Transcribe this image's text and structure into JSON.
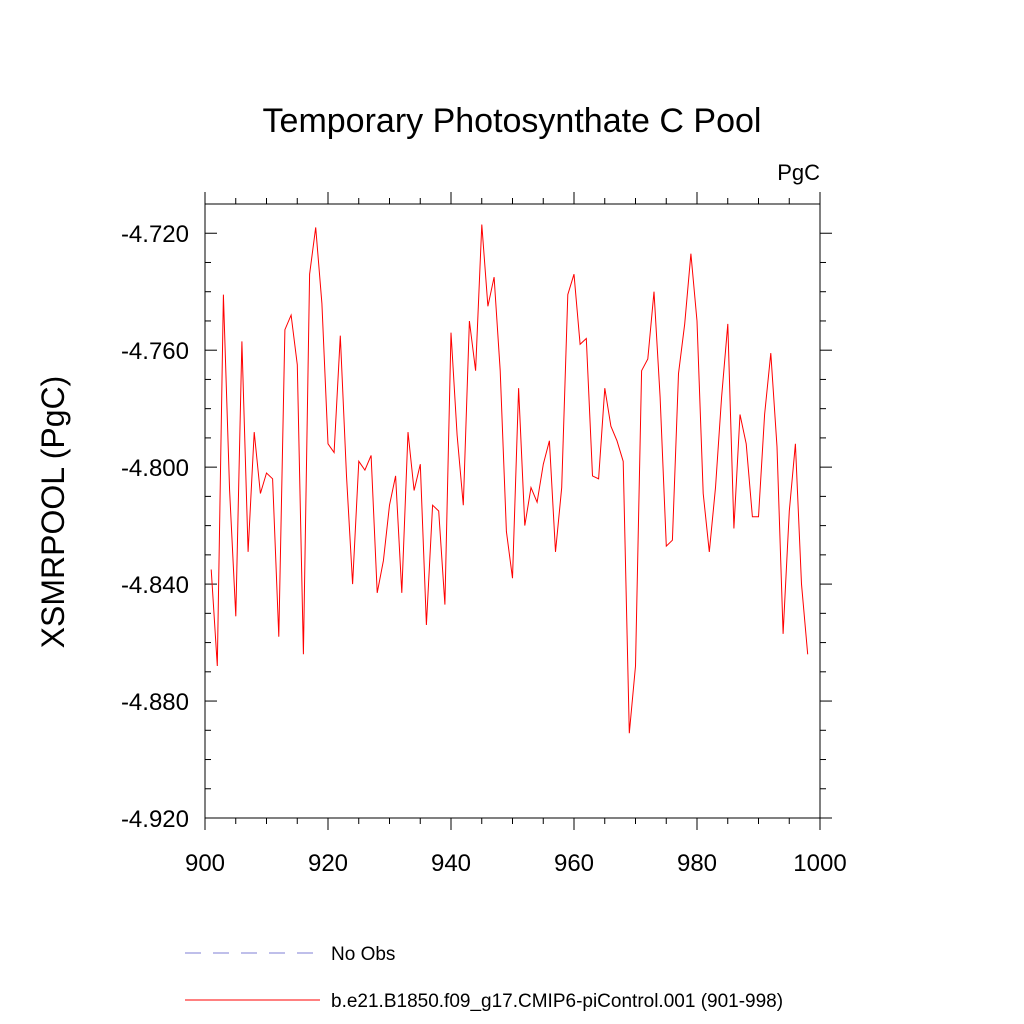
{
  "chart_data": {
    "type": "line",
    "title": "Temporary Photosynthate C Pool",
    "units": "PgC",
    "ylabel": "XSMRPOOL  (PgC)",
    "xlabel": "",
    "xlim": [
      900,
      1000
    ],
    "ylim": [
      -4.92,
      -4.71
    ],
    "x_ticks": [
      900,
      920,
      940,
      960,
      980,
      1000
    ],
    "x_tick_labels": [
      "900",
      "920",
      "940",
      "960",
      "980",
      "1000"
    ],
    "y_ticks": [
      -4.72,
      -4.76,
      -4.8,
      -4.84,
      -4.88,
      -4.92
    ],
    "y_tick_labels": [
      "-4.720",
      "-4.760",
      "-4.800",
      "-4.840",
      "-4.880",
      "-4.920"
    ],
    "grid": false,
    "series": [
      {
        "name": "b.e21.B1850.f09_g17.CMIP6-piControl.001 (901-998)",
        "color": "#ff0000",
        "x": [
          901,
          902,
          903,
          904,
          905,
          906,
          907,
          908,
          909,
          910,
          911,
          912,
          913,
          914,
          915,
          916,
          917,
          918,
          919,
          920,
          921,
          922,
          923,
          924,
          925,
          926,
          927,
          928,
          929,
          930,
          931,
          932,
          933,
          934,
          935,
          936,
          937,
          938,
          939,
          940,
          941,
          942,
          943,
          944,
          945,
          946,
          947,
          948,
          949,
          950,
          951,
          952,
          953,
          954,
          955,
          956,
          957,
          958,
          959,
          960,
          961,
          962,
          963,
          964,
          965,
          966,
          967,
          968,
          969,
          970,
          971,
          972,
          973,
          974,
          975,
          976,
          977,
          978,
          979,
          980,
          981,
          982,
          983,
          984,
          985,
          986,
          987,
          988,
          989,
          990,
          991,
          992,
          993,
          994,
          995,
          996,
          997,
          998
        ],
        "y": [
          -4.835,
          -4.868,
          -4.741,
          -4.808,
          -4.851,
          -4.757,
          -4.829,
          -4.788,
          -4.809,
          -4.802,
          -4.804,
          -4.858,
          -4.753,
          -4.748,
          -4.765,
          -4.864,
          -4.734,
          -4.718,
          -4.744,
          -4.792,
          -4.795,
          -4.755,
          -4.803,
          -4.84,
          -4.798,
          -4.801,
          -4.796,
          -4.843,
          -4.832,
          -4.813,
          -4.803,
          -4.843,
          -4.788,
          -4.808,
          -4.799,
          -4.854,
          -4.813,
          -4.815,
          -4.847,
          -4.754,
          -4.789,
          -4.813,
          -4.75,
          -4.767,
          -4.717,
          -4.745,
          -4.735,
          -4.767,
          -4.822,
          -4.838,
          -4.773,
          -4.82,
          -4.807,
          -4.812,
          -4.799,
          -4.791,
          -4.829,
          -4.807,
          -4.741,
          -4.734,
          -4.758,
          -4.756,
          -4.803,
          -4.804,
          -4.773,
          -4.786,
          -4.791,
          -4.798,
          -4.891,
          -4.868,
          -4.767,
          -4.763,
          -4.74,
          -4.776,
          -4.827,
          -4.825,
          -4.768,
          -4.751,
          -4.727,
          -4.75,
          -4.809,
          -4.829,
          -4.807,
          -4.776,
          -4.751,
          -4.821,
          -4.782,
          -4.792,
          -4.817,
          -4.817,
          -4.782,
          -4.761,
          -4.793,
          -4.857,
          -4.815,
          -4.792,
          -4.84,
          -4.864
        ]
      }
    ]
  },
  "legend": {
    "items": [
      {
        "label": "No Obs",
        "color": "#7f7fd6",
        "style": "dashed"
      },
      {
        "label": "b.e21.B1850.f09_g17.CMIP6-piControl.001 (901-998)",
        "color": "#ff0000",
        "style": "solid"
      }
    ]
  }
}
